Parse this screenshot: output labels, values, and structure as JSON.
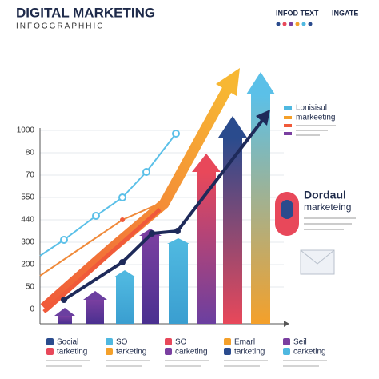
{
  "header": {
    "title": "DIGITAL MARKETING",
    "subtitle": "INFOGGRAPHHIC",
    "info": "INFOD TEXT",
    "tag": "INGATE"
  },
  "y_axis_labels": [
    "1000",
    "80",
    "70",
    "550",
    "440",
    "300",
    "200",
    "50",
    "0"
  ],
  "side_legend": {
    "line1": "Lonisisul",
    "line2": "markeeting"
  },
  "callout": {
    "line1": "Dordaul",
    "line2": "marketeing"
  },
  "bottom_legend": [
    {
      "title": "Social",
      "sub": "tarketing"
    },
    {
      "title": "SO",
      "sub": "tarketing"
    },
    {
      "title": "SO",
      "sub": "carketing"
    },
    {
      "title": "Emarl",
      "sub": "tarketing"
    },
    {
      "title": "Seil",
      "sub": "carketing"
    }
  ]
}
